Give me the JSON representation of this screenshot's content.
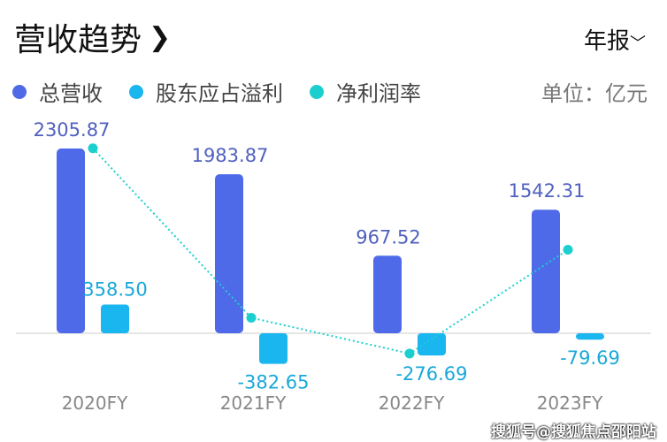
{
  "header": {
    "title": "营收趋势",
    "chevron": "❯",
    "period": "年报",
    "period_chevron": "﹀",
    "unit": "单位：亿元"
  },
  "watermark": "搜狐号@搜狐焦点邵阳站",
  "colors": {
    "revenue": "#4f6ae8",
    "profit": "#1ab6ef",
    "margin": "#1ccfcf"
  },
  "chart_data": {
    "type": "bar",
    "categories": [
      "2020FY",
      "2021FY",
      "2022FY",
      "2023FY"
    ],
    "series": [
      {
        "name": "总营收",
        "values": [
          2305.87,
          1983.87,
          967.52,
          1542.31
        ],
        "labels": [
          "2305.87",
          "1983.87",
          "967.52",
          "1542.31"
        ]
      },
      {
        "name": "股东应占溢利",
        "values": [
          358.5,
          -382.65,
          -276.69,
          -79.69
        ],
        "labels": [
          "358.50",
          "-382.65",
          "-276.69",
          "-79.69"
        ]
      },
      {
        "name": "净利润率",
        "type": "line",
        "values": [
          15.5,
          1.3,
          -1.7,
          7.0
        ],
        "note": "approximate, unlabeled"
      }
    ],
    "ylabel": "亿元",
    "grid": false,
    "legend": "top-left"
  }
}
